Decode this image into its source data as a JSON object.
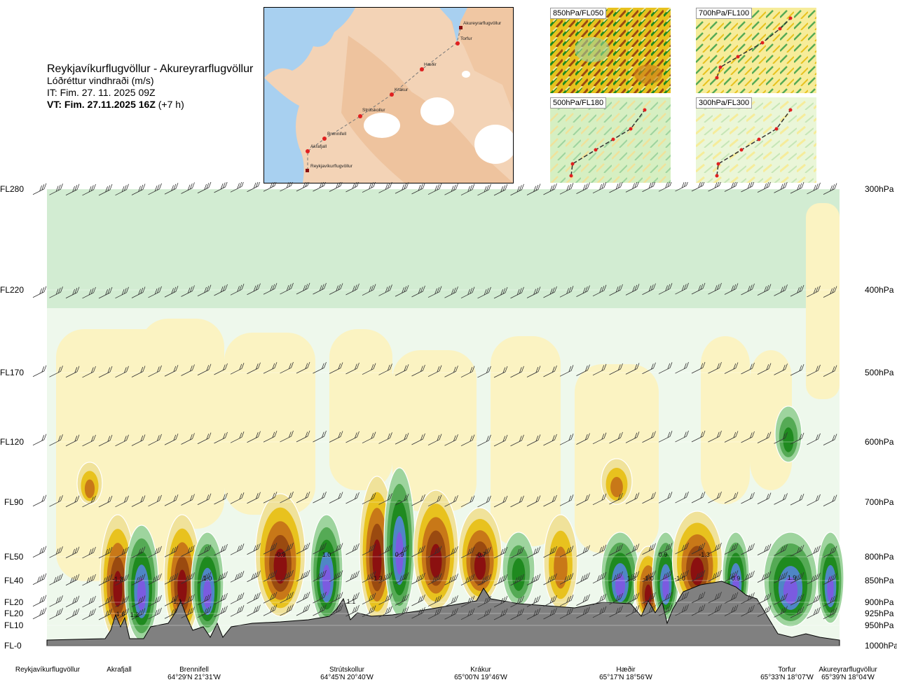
{
  "header": {
    "route": "Reykjavíkurflugvöllur - Akureyrarflugvöllur",
    "variable": "Lóðréttur vindhraði (m/s)",
    "issue_time": "IT: Fim. 27. 11. 2025 09Z",
    "valid_prefix": "VT: Fim. 27.11.2025 16Z",
    "valid_suffix": " (+7 h)"
  },
  "route_map": {
    "waypoints": [
      "Akureyrarflugvöllur",
      "Torfur",
      "Hæðir",
      "Krákur",
      "Strútskollur",
      "Brennifell",
      "Akrafjall",
      "Reykjavíkurflugvöllur"
    ]
  },
  "mini_maps": [
    {
      "label": "850hPa/FL050"
    },
    {
      "label": "700hPa/FL100"
    },
    {
      "label": "500hPa/FL180"
    },
    {
      "label": "300hPa/FL300"
    }
  ],
  "colors": {
    "strong_up": "#7b5be0",
    "up_blue": "#4f86c6",
    "up_green_dark": "#1f8a1f",
    "up_green": "#55aa55",
    "up_green_light": "#9ed49e",
    "neutral_light": "#d2ecd2",
    "neutral": "#eef8ec",
    "down_cream": "#fbf3c2",
    "down_yellow": "#f0e29a",
    "down_gold": "#e8c21e",
    "down_orange": "#c87818",
    "down_brown": "#9a4a10",
    "down_red": "#8b1010",
    "terrain": "#808080"
  },
  "chart_data": {
    "type": "heatmap",
    "title": "Lóðréttur vindhraði (m/s)",
    "left_levels": [
      "FL280",
      "FL220",
      "FL170",
      "FL120",
      "FL90",
      "FL50",
      "FL40",
      "FL20",
      "FL20",
      "FL10",
      "FL-0"
    ],
    "right_levels": [
      "300hPa",
      "400hPa",
      "500hPa",
      "600hPa",
      "700hPa",
      "800hPa",
      "850hPa",
      "900hPa",
      "925hPa",
      "950hPa",
      "1000hPa"
    ],
    "pressure_values": [
      300,
      400,
      500,
      600,
      700,
      800,
      850,
      900,
      925,
      950,
      1000
    ],
    "waypoints": [
      {
        "name": "Reykjavíkurflugvöllur",
        "coord": ""
      },
      {
        "name": "Akrafjall",
        "coord": ""
      },
      {
        "name": "Brennifell",
        "coord": "64°29'N 21°31'W"
      },
      {
        "name": "Strútskollur",
        "coord": "64°45'N 20°40'W"
      },
      {
        "name": "Krákur",
        "coord": "65°00'N 19°46'W"
      },
      {
        "name": "Hæðir",
        "coord": "65°17'N 18°56'W"
      },
      {
        "name": "Torfur",
        "coord": "65°33'N 18°07'W"
      },
      {
        "name": "Akureyrarflugvöllur",
        "coord": "65°39'N 18°04'W"
      }
    ],
    "value_labels": [
      "-1.3",
      "1.2",
      "1.6",
      "-1.1",
      "1.0",
      "-0.9",
      "1.0",
      "1.1",
      "-1.3",
      "0.9",
      "-0.7",
      "1.3",
      "-1.0",
      "0.9",
      "-1.0",
      "-1.3",
      "0.9",
      "1.9"
    ],
    "grid": false,
    "legend": "none"
  }
}
